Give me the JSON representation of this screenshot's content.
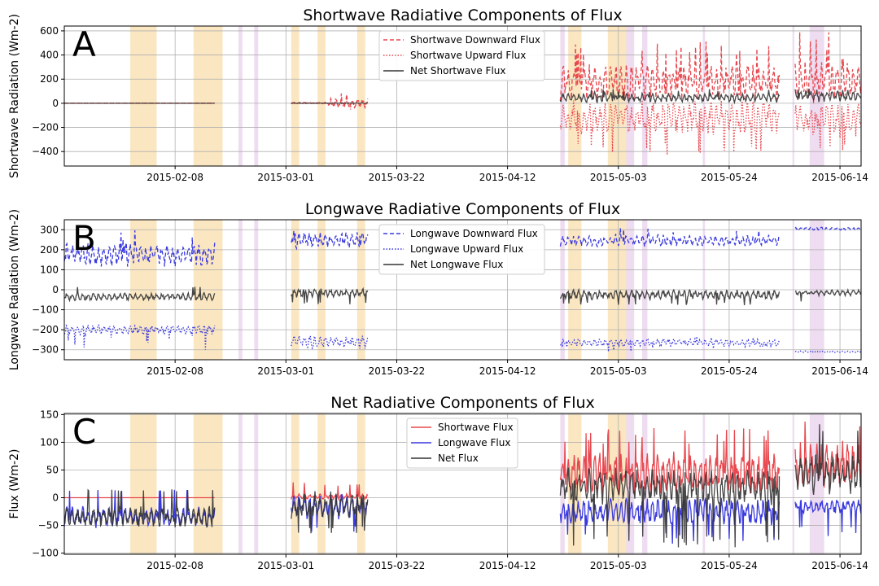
{
  "figure": {
    "background": "#ffffff"
  },
  "chart_data": [
    {
      "type": "line",
      "panel_label": "A",
      "title": "Shortwave Radiative Components of Flux",
      "ylabel": "Shortwave Radiation (Wm-2)",
      "xlabel": "",
      "xlim": [
        "2015-01-18",
        "2015-06-18"
      ],
      "ylim": [
        -520,
        640
      ],
      "xticks": [
        "2015-02-08",
        "2015-03-01",
        "2015-03-22",
        "2015-04-12",
        "2015-05-03",
        "2015-05-24",
        "2015-06-14"
      ],
      "yticks": [
        -400,
        -200,
        0,
        200,
        400,
        600
      ],
      "grid": true,
      "legend_position": "top-center",
      "shaded_periods_tan": [
        [
          "2015-01-30T12",
          "2015-02-04T12"
        ],
        [
          "2015-02-11T12",
          "2015-02-17"
        ],
        [
          "2015-03-02",
          "2015-03-03T12"
        ],
        [
          "2015-03-07",
          "2015-03-08T12"
        ],
        [
          "2015-03-14T12",
          "2015-03-16"
        ],
        [
          "2015-04-23T12",
          "2015-04-26"
        ],
        [
          "2015-05-01",
          "2015-05-04T12"
        ]
      ],
      "shaded_periods_lavender": [
        [
          "2015-02-20",
          "2015-02-20T18"
        ],
        [
          "2015-02-23",
          "2015-02-23T18"
        ],
        [
          "2015-04-22",
          "2015-04-22T20"
        ],
        [
          "2015-05-04T12",
          "2015-05-06"
        ],
        [
          "2015-05-07T12",
          "2015-05-08T12"
        ],
        [
          "2015-05-19",
          "2015-05-19T10"
        ],
        [
          "2015-06-05",
          "2015-06-05T08"
        ],
        [
          "2015-06-08T06",
          "2015-06-11"
        ]
      ],
      "series": [
        {
          "name": "Shortwave Downward Flux",
          "color": "#e8484f",
          "style": "dashed",
          "segments": [
            {
              "start": "2015-01-18",
              "end": "2015-02-15T12",
              "base": 2,
              "amp": 0,
              "spike": 0
            },
            {
              "start": "2015-03-02",
              "end": "2015-03-09",
              "base": 4,
              "amp": 4,
              "spike": 0
            },
            {
              "start": "2015-03-09",
              "end": "2015-03-16T12",
              "base": 5,
              "amp": 45,
              "spike": 90
            },
            {
              "start": "2015-04-22",
              "end": "2015-06-02T12",
              "base": 175,
              "amp": 160,
              "spike": 520
            },
            {
              "start": "2015-06-05T12",
              "end": "2015-06-18",
              "base": 200,
              "amp": 200,
              "spike": 590
            }
          ]
        },
        {
          "name": "Shortwave Upward Flux",
          "color": "#e8484f",
          "style": "dotted",
          "segments": [
            {
              "start": "2015-01-18",
              "end": "2015-02-15T12",
              "base": -1,
              "amp": 0,
              "spike": 0
            },
            {
              "start": "2015-03-02",
              "end": "2015-03-09",
              "base": -2,
              "amp": 3,
              "spike": 0
            },
            {
              "start": "2015-03-09",
              "end": "2015-03-16T12",
              "base": -4,
              "amp": 30,
              "spike": -60
            },
            {
              "start": "2015-04-22",
              "end": "2015-06-02T12",
              "base": -120,
              "amp": 150,
              "spike": -440
            },
            {
              "start": "2015-06-05T12",
              "end": "2015-06-18",
              "base": -140,
              "amp": 150,
              "spike": -445
            }
          ]
        },
        {
          "name": "Net Shortwave Flux",
          "color": "#333333",
          "style": "solid",
          "segments": [
            {
              "start": "2015-01-18",
              "end": "2015-02-15T12",
              "base": 0,
              "amp": 0,
              "spike": 0
            },
            {
              "start": "2015-03-02",
              "end": "2015-03-16T12",
              "base": 1,
              "amp": 2,
              "spike": 0
            },
            {
              "start": "2015-04-22",
              "end": "2015-06-02T12",
              "base": 45,
              "amp": 40,
              "spike": 120
            },
            {
              "start": "2015-06-05T12",
              "end": "2015-06-18",
              "base": 60,
              "amp": 50,
              "spike": 140
            }
          ]
        }
      ]
    },
    {
      "type": "line",
      "panel_label": "B",
      "title": "Longwave Radiative Components of Flux",
      "ylabel": "Longwave Radiation (Wm-2)",
      "xlabel": "",
      "xlim": [
        "2015-01-18",
        "2015-06-18"
      ],
      "ylim": [
        -350,
        350
      ],
      "xticks": [
        "2015-02-08",
        "2015-03-01",
        "2015-03-22",
        "2015-04-12",
        "2015-05-03",
        "2015-05-24",
        "2015-06-14"
      ],
      "yticks": [
        -300,
        -200,
        -100,
        0,
        100,
        200,
        300
      ],
      "grid": true,
      "legend_position": "top-center",
      "shaded_periods_tan": [
        [
          "2015-01-30T12",
          "2015-02-04T12"
        ],
        [
          "2015-02-11T12",
          "2015-02-17"
        ],
        [
          "2015-03-02",
          "2015-03-03T12"
        ],
        [
          "2015-03-07",
          "2015-03-08T12"
        ],
        [
          "2015-03-14T12",
          "2015-03-16"
        ],
        [
          "2015-04-23T12",
          "2015-04-26"
        ],
        [
          "2015-05-01",
          "2015-05-04T12"
        ]
      ],
      "shaded_periods_lavender": [
        [
          "2015-02-20",
          "2015-02-20T18"
        ],
        [
          "2015-02-23",
          "2015-02-23T18"
        ],
        [
          "2015-04-22",
          "2015-04-22T20"
        ],
        [
          "2015-05-04T12",
          "2015-05-06"
        ],
        [
          "2015-05-07T12",
          "2015-05-08T12"
        ],
        [
          "2015-05-19",
          "2015-05-19T10"
        ],
        [
          "2015-06-05",
          "2015-06-05T08"
        ],
        [
          "2015-06-08T06",
          "2015-06-11"
        ]
      ],
      "series": [
        {
          "name": "Longwave Downward Flux",
          "color": "#3a3ae0",
          "style": "dashed",
          "segments": [
            {
              "start": "2015-01-18",
              "end": "2015-02-15T12",
              "base": 175,
              "amp": 60,
              "spike": 300
            },
            {
              "start": "2015-03-02",
              "end": "2015-03-16T12",
              "base": 250,
              "amp": 45,
              "spike": 300
            },
            {
              "start": "2015-04-22",
              "end": "2015-06-02T12",
              "base": 245,
              "amp": 30,
              "spike": 310
            },
            {
              "start": "2015-06-05T12",
              "end": "2015-06-18",
              "base": 305,
              "amp": 8,
              "spike": 0
            }
          ]
        },
        {
          "name": "Longwave Upward Flux",
          "color": "#3a3ae0",
          "style": "dotted",
          "segments": [
            {
              "start": "2015-01-18",
              "end": "2015-02-15T12",
              "base": -200,
              "amp": 25,
              "spike": -300
            },
            {
              "start": "2015-03-02",
              "end": "2015-03-16T12",
              "base": -260,
              "amp": 35,
              "spike": -300
            },
            {
              "start": "2015-04-22",
              "end": "2015-06-02T12",
              "base": -265,
              "amp": 20,
              "spike": -310
            },
            {
              "start": "2015-06-05T12",
              "end": "2015-06-18",
              "base": -310,
              "amp": 4,
              "spike": 0
            }
          ]
        },
        {
          "name": "Net Longwave Flux",
          "color": "#333333",
          "style": "solid",
          "segments": [
            {
              "start": "2015-01-18",
              "end": "2015-02-15T12",
              "base": -35,
              "amp": 20,
              "spike": 15
            },
            {
              "start": "2015-03-02",
              "end": "2015-03-16T12",
              "base": -15,
              "amp": 25,
              "spike": -75
            },
            {
              "start": "2015-04-22",
              "end": "2015-06-02T12",
              "base": -25,
              "amp": 25,
              "spike": -80
            },
            {
              "start": "2015-06-05T12",
              "end": "2015-06-18",
              "base": -15,
              "amp": 15,
              "spike": -70
            }
          ]
        }
      ]
    },
    {
      "type": "line",
      "panel_label": "C",
      "title": "Net Radiative Components of Flux",
      "ylabel": "Flux (Wm-2)",
      "xlabel": "",
      "xlim": [
        "2015-01-18",
        "2015-06-18"
      ],
      "ylim": [
        -102,
        152
      ],
      "xticks": [
        "2015-02-08",
        "2015-03-01",
        "2015-03-22",
        "2015-04-12",
        "2015-05-03",
        "2015-05-24",
        "2015-06-14"
      ],
      "yticks": [
        -100,
        -50,
        0,
        50,
        100,
        150
      ],
      "grid": true,
      "legend_position": "top-center",
      "shaded_periods_tan": [
        [
          "2015-01-30T12",
          "2015-02-04T12"
        ],
        [
          "2015-02-11T12",
          "2015-02-17"
        ],
        [
          "2015-03-02",
          "2015-03-03T12"
        ],
        [
          "2015-03-07",
          "2015-03-08T12"
        ],
        [
          "2015-03-14T12",
          "2015-03-16"
        ],
        [
          "2015-04-23T12",
          "2015-04-26"
        ],
        [
          "2015-05-01",
          "2015-05-04T12"
        ]
      ],
      "shaded_periods_lavender": [
        [
          "2015-02-20",
          "2015-02-20T18"
        ],
        [
          "2015-02-23",
          "2015-02-23T18"
        ],
        [
          "2015-04-22",
          "2015-04-22T20"
        ],
        [
          "2015-05-04T12",
          "2015-05-06"
        ],
        [
          "2015-05-07T12",
          "2015-05-08T12"
        ],
        [
          "2015-05-19",
          "2015-05-19T10"
        ],
        [
          "2015-06-05",
          "2015-06-05T08"
        ],
        [
          "2015-06-08T06",
          "2015-06-11"
        ]
      ],
      "series": [
        {
          "name": "Shortwave Flux",
          "color": "#e8484f",
          "style": "solid",
          "segments": [
            {
              "start": "2015-01-18",
              "end": "2015-02-15T12",
              "base": 0,
              "amp": 0,
              "spike": 0
            },
            {
              "start": "2015-03-02",
              "end": "2015-03-16T12",
              "base": 2,
              "amp": 5,
              "spike": 28
            },
            {
              "start": "2015-04-22",
              "end": "2015-06-02T12",
              "base": 45,
              "amp": 40,
              "spike": 130
            },
            {
              "start": "2015-06-05T12",
              "end": "2015-06-18",
              "base": 60,
              "amp": 45,
              "spike": 140
            }
          ]
        },
        {
          "name": "Longwave Flux",
          "color": "#3a3ae0",
          "style": "solid",
          "segments": [
            {
              "start": "2015-01-18",
              "end": "2015-02-15T12",
              "base": -35,
              "amp": 20,
              "spike": 15
            },
            {
              "start": "2015-03-02",
              "end": "2015-03-16T12",
              "base": -15,
              "amp": 25,
              "spike": -65
            },
            {
              "start": "2015-04-22",
              "end": "2015-06-02T12",
              "base": -25,
              "amp": 25,
              "spike": -85
            },
            {
              "start": "2015-06-05T12",
              "end": "2015-06-18",
              "base": -15,
              "amp": 15,
              "spike": -70
            }
          ]
        },
        {
          "name": "Net Flux",
          "color": "#333333",
          "style": "solid",
          "segments": [
            {
              "start": "2015-01-18",
              "end": "2015-02-15T12",
              "base": -35,
              "amp": 20,
              "spike": 15
            },
            {
              "start": "2015-03-02",
              "end": "2015-03-16T12",
              "base": -13,
              "amp": 25,
              "spike": -65
            },
            {
              "start": "2015-04-22",
              "end": "2015-06-02T12",
              "base": 20,
              "amp": 35,
              "spike": -90
            },
            {
              "start": "2015-06-05T12",
              "end": "2015-06-18",
              "base": 45,
              "amp": 40,
              "spike": 140
            }
          ]
        }
      ]
    }
  ]
}
